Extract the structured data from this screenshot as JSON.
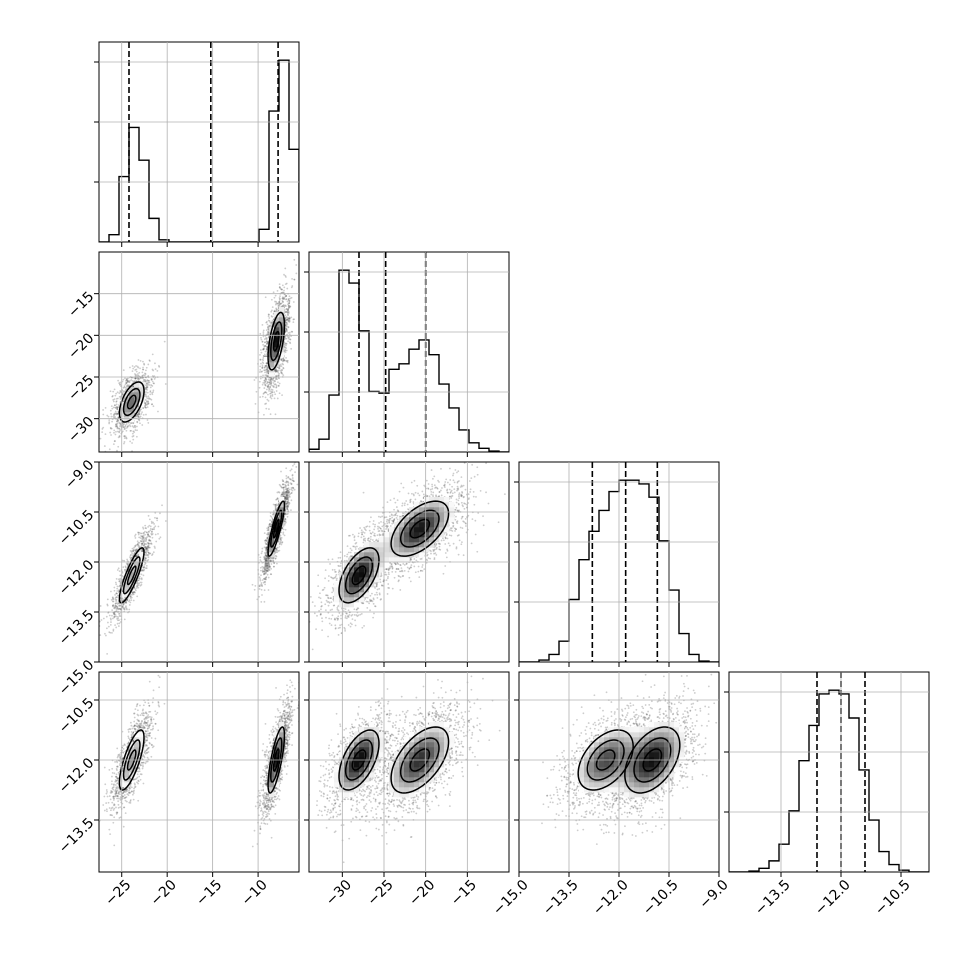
{
  "figure": {
    "type": "corner_plot",
    "grid": true,
    "colors": {
      "line": "#000000",
      "grid": "#b0b0b0",
      "point": "#4d4d4d"
    }
  },
  "chart_data": {
    "type": "corner",
    "parameters": [
      {
        "range": [
          -27.5,
          -5.5
        ],
        "ticks": [
          -25,
          -20,
          -15,
          -10
        ],
        "tick_labels": [
          "−25",
          "−20",
          "−15",
          "−10"
        ],
        "quantiles": [
          -24.2,
          -15.2,
          -7.8
        ]
      },
      {
        "range": [
          -34,
          -10
        ],
        "ticks": [
          -30,
          -25,
          -20,
          -15
        ],
        "tick_labels": [
          "−30",
          "−25",
          "−20",
          "−15"
        ],
        "quantiles": [
          -28.0,
          -24.8,
          -20.0
        ]
      },
      {
        "range": [
          -15.0,
          -9.0
        ],
        "ticks": [
          -15.0,
          -13.5,
          -12.0,
          -10.5,
          -9.0
        ],
        "tick_labels": [
          "−15.0",
          "−13.5",
          "−12.0",
          "−10.5",
          "−9.0"
        ],
        "quantiles": [
          -12.8,
          -11.8,
          -10.85
        ]
      },
      {
        "range": [
          -14.8,
          -9.8
        ],
        "ticks": [
          -13.5,
          -12.0,
          -10.5
        ],
        "tick_labels": [
          "−13.5",
          "−12.0",
          "−10.5"
        ],
        "quantiles": [
          -12.6,
          -12.0,
          -11.4
        ]
      }
    ],
    "histograms": [
      {
        "param": 0,
        "edges": [
          -27.5,
          -26.4,
          -25.3,
          -24.2,
          -23.1,
          -22.0,
          -20.9,
          -19.8,
          -18.7,
          -17.6,
          -16.5,
          -15.4,
          -14.3,
          -13.2,
          -12.1,
          -11.0,
          -9.9,
          -8.8,
          -7.7,
          -6.6,
          -5.5
        ],
        "counts": [
          0,
          40,
          360,
          630,
          450,
          130,
          12,
          0,
          0,
          0,
          0,
          0,
          0,
          0,
          0,
          0,
          70,
          720,
          1000,
          510
        ]
      },
      {
        "param": 1,
        "edges": [
          -34.0,
          -32.8,
          -31.6,
          -30.4,
          -29.2,
          -28.0,
          -26.8,
          -25.6,
          -24.4,
          -23.2,
          -22.0,
          -20.8,
          -19.6,
          -18.4,
          -17.2,
          -16.0,
          -14.8,
          -13.6,
          -12.4,
          -11.2,
          -10.0
        ],
        "counts": [
          15,
          70,
          310,
          990,
          920,
          660,
          330,
          320,
          450,
          480,
          560,
          610,
          530,
          370,
          240,
          120,
          50,
          20,
          5,
          0
        ]
      },
      {
        "param": 2,
        "edges": [
          -15.0,
          -14.7,
          -14.4,
          -14.1,
          -13.8,
          -13.5,
          -13.2,
          -12.9,
          -12.6,
          -12.3,
          -12.0,
          -11.7,
          -11.4,
          -11.1,
          -10.8,
          -10.5,
          -10.2,
          -9.9,
          -9.6,
          -9.3,
          -9.0
        ],
        "counts": [
          0,
          0,
          10,
          40,
          110,
          330,
          540,
          690,
          800,
          900,
          960,
          960,
          940,
          870,
          640,
          380,
          150,
          40,
          5,
          0
        ]
      },
      {
        "param": 3,
        "edges": [
          -14.8,
          -14.55,
          -14.3,
          -14.05,
          -13.8,
          -13.55,
          -13.3,
          -13.05,
          -12.8,
          -12.55,
          -12.3,
          -12.05,
          -11.8,
          -11.55,
          -11.3,
          -11.05,
          -10.8,
          -10.55,
          -10.3,
          -10.05,
          -9.8
        ],
        "counts": [
          0,
          0,
          5,
          20,
          60,
          150,
          330,
          600,
          790,
          960,
          980,
          960,
          830,
          550,
          280,
          110,
          40,
          10,
          0,
          0
        ]
      }
    ],
    "posterior_modes": [
      {
        "weight": 0.42,
        "mean": [
          -23.9,
          -28.0,
          -12.4,
          -12.0
        ],
        "sd": [
          0.9,
          1.6,
          0.55,
          0.5
        ]
      },
      {
        "weight": 0.58,
        "mean": [
          -8.0,
          -20.7,
          -11.0,
          -12.0
        ],
        "sd": [
          0.6,
          2.3,
          0.55,
          0.55
        ]
      }
    ],
    "correlations": [
      [
        1,
        0.55,
        0.85,
        0.75
      ],
      [
        0.55,
        1,
        0.55,
        0.55
      ],
      [
        0.85,
        0.55,
        1,
        0.45
      ],
      [
        0.75,
        0.55,
        0.45,
        1
      ]
    ],
    "contour_levels": [
      0.5,
      1.0,
      1.5
    ],
    "scatter_samples_per_panel": 2600,
    "xlim_per_column": [
      [
        -27.5,
        -5.5
      ],
      [
        -34,
        -10
      ],
      [
        -15.0,
        -9.0
      ],
      [
        -14.8,
        -9.8
      ]
    ],
    "ylim_per_row": [
      null,
      [
        -34,
        -10
      ],
      [
        -15.0,
        -9.0
      ],
      [
        -14.8,
        -9.8
      ]
    ]
  }
}
